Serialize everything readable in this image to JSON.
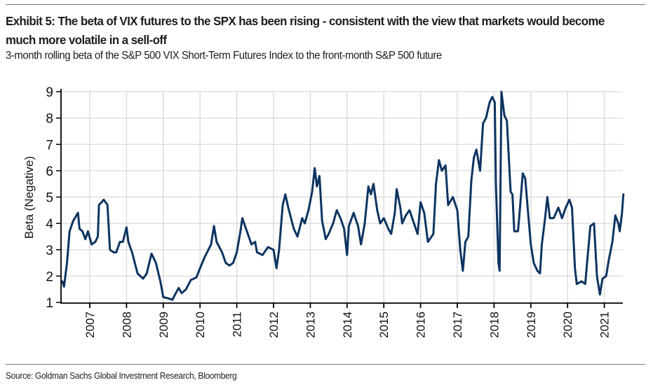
{
  "header": {
    "title": "Exhibit 5: The beta of VIX futures to the SPX has been rising - consistent with the view that markets would become much more volatile in a sell-off",
    "subtitle": "3-month rolling beta of the S&P 500 VIX Short-Term Futures Index to the front-month S&P 500 future"
  },
  "footer": {
    "source": "Source: Goldman Sachs Global Investment Research, Bloomberg"
  },
  "colors": {
    "line": "#0d3461",
    "grid": "#d9d9d9",
    "axis": "#000000"
  },
  "chart_data": {
    "type": "line",
    "title": "Exhibit 5: The beta of VIX futures to the SPX has been rising - consistent with the view that markets would become much more volatile in a sell-off",
    "subtitle": "3-month rolling beta of the S&P 500 VIX Short-Term Futures Index to the front-month S&P 500 future",
    "xlabel": "",
    "ylabel": "Beta (Negative)",
    "ylim": [
      1,
      9
    ],
    "xlim": [
      2006.24,
      2021.55
    ],
    "yticks": [
      "1",
      "2",
      "3",
      "4",
      "5",
      "6",
      "7",
      "8",
      "9"
    ],
    "xticks": [
      "2007",
      "2008",
      "2009",
      "2010",
      "2011",
      "2012",
      "2013",
      "2014",
      "2015",
      "2016",
      "2017",
      "2018",
      "2019",
      "2020",
      "2021"
    ],
    "grid": true,
    "legend": "none",
    "series": [
      {
        "name": "3-month rolling beta",
        "x": [
          2006.25,
          2006.3,
          2006.38,
          2006.45,
          2006.55,
          2006.68,
          2006.72,
          2006.8,
          2006.88,
          2006.95,
          2007.05,
          2007.15,
          2007.22,
          2007.25,
          2007.32,
          2007.38,
          2007.48,
          2007.55,
          2007.65,
          2007.72,
          2007.82,
          2007.9,
          2008.0,
          2008.05,
          2008.15,
          2008.3,
          2008.45,
          2008.55,
          2008.68,
          2008.8,
          2008.92,
          2009.0,
          2009.15,
          2009.25,
          2009.32,
          2009.42,
          2009.5,
          2009.62,
          2009.75,
          2009.9,
          2010.0,
          2010.12,
          2010.3,
          2010.38,
          2010.45,
          2010.6,
          2010.7,
          2010.8,
          2010.9,
          2011.0,
          2011.1,
          2011.15,
          2011.25,
          2011.4,
          2011.5,
          2011.55,
          2011.7,
          2011.85,
          2012.0,
          2012.08,
          2012.15,
          2012.25,
          2012.32,
          2012.4,
          2012.55,
          2012.65,
          2012.78,
          2012.85,
          2012.95,
          2013.05,
          2013.12,
          2013.18,
          2013.25,
          2013.32,
          2013.42,
          2013.5,
          2013.62,
          2013.72,
          2013.82,
          2013.92,
          2014.0,
          2014.05,
          2014.18,
          2014.3,
          2014.38,
          2014.48,
          2014.58,
          2014.65,
          2014.72,
          2014.82,
          2014.9,
          2015.0,
          2015.12,
          2015.2,
          2015.3,
          2015.35,
          2015.45,
          2015.5,
          2015.6,
          2015.7,
          2015.82,
          2015.92,
          2016.0,
          2016.1,
          2016.2,
          2016.35,
          2016.42,
          2016.5,
          2016.58,
          2016.68,
          2016.75,
          2016.88,
          2017.0,
          2017.08,
          2017.15,
          2017.22,
          2017.3,
          2017.38,
          2017.45,
          2017.52,
          2017.62,
          2017.7,
          2017.78,
          2017.88,
          2017.95,
          2018.02,
          2018.05,
          2018.12,
          2018.15,
          2018.2,
          2018.28,
          2018.35,
          2018.45,
          2018.5,
          2018.55,
          2018.65,
          2018.7,
          2018.78,
          2018.85,
          2018.92,
          2019.0,
          2019.08,
          2019.18,
          2019.25,
          2019.3,
          2019.38,
          2019.45,
          2019.52,
          2019.62,
          2019.75,
          2019.85,
          2019.95,
          2020.05,
          2020.12,
          2020.2,
          2020.25,
          2020.38,
          2020.48,
          2020.55,
          2020.62,
          2020.72,
          2020.8,
          2020.88,
          2020.95,
          2021.05,
          2021.12,
          2021.22,
          2021.3,
          2021.38,
          2021.42,
          2021.48,
          2021.52
        ],
        "values": [
          1.8,
          1.6,
          2.5,
          3.7,
          4.1,
          4.4,
          3.8,
          3.7,
          3.4,
          3.7,
          3.2,
          3.3,
          3.5,
          4.7,
          4.8,
          4.9,
          4.7,
          3.0,
          2.9,
          2.9,
          3.3,
          3.3,
          3.85,
          3.3,
          2.9,
          2.1,
          1.9,
          2.1,
          2.85,
          2.5,
          1.8,
          1.2,
          1.15,
          1.1,
          1.3,
          1.55,
          1.35,
          1.5,
          1.85,
          1.95,
          2.3,
          2.7,
          3.2,
          3.9,
          3.3,
          2.9,
          2.5,
          2.4,
          2.5,
          2.9,
          3.7,
          4.2,
          3.8,
          3.2,
          3.3,
          2.9,
          2.8,
          3.1,
          3.0,
          2.3,
          3.0,
          4.7,
          5.1,
          4.6,
          3.8,
          3.5,
          4.2,
          4.0,
          4.5,
          5.2,
          6.1,
          5.4,
          5.8,
          4.1,
          3.4,
          3.6,
          4.0,
          4.5,
          4.2,
          3.8,
          2.8,
          3.9,
          4.4,
          3.9,
          3.2,
          4.0,
          5.4,
          5.1,
          5.5,
          4.5,
          4.0,
          4.2,
          3.8,
          3.6,
          4.4,
          5.3,
          4.6,
          4.0,
          4.3,
          4.5,
          4.0,
          3.6,
          4.8,
          4.4,
          3.3,
          3.6,
          5.5,
          6.4,
          6.0,
          6.2,
          4.7,
          5.0,
          4.5,
          3.0,
          2.2,
          3.3,
          3.5,
          5.6,
          6.5,
          6.8,
          6.0,
          7.8,
          8.0,
          8.6,
          8.8,
          8.6,
          5.5,
          2.5,
          2.2,
          9.0,
          8.1,
          7.9,
          5.2,
          5.1,
          3.7,
          3.7,
          4.5,
          5.9,
          5.7,
          4.5,
          3.2,
          2.5,
          2.2,
          2.1,
          3.2,
          4.1,
          5.0,
          4.2,
          4.2,
          4.6,
          4.2,
          4.6,
          4.9,
          4.6,
          2.3,
          1.7,
          1.8,
          1.7,
          2.8,
          3.9,
          4.0,
          2.0,
          1.3,
          1.9,
          2.0,
          2.6,
          3.3,
          4.3,
          4.0,
          3.7,
          4.4,
          5.1
        ]
      }
    ]
  }
}
